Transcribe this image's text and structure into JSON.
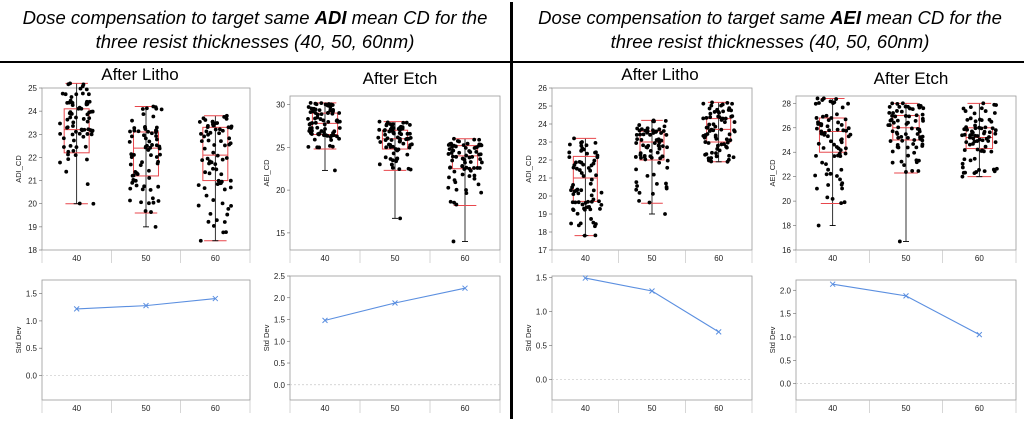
{
  "left_heading": {
    "pre": "Dose compensation to target same ",
    "bold": "ADI",
    "post": " mean CD for the",
    "line2": "three resist thicknesses (40, 50, 60nm)"
  },
  "right_heading": {
    "pre": "Dose compensation to target same ",
    "bold": "AEI",
    "post": " mean CD for the",
    "line2": "three resist thicknesses (40, 50, 60nm)"
  },
  "subtitles": [
    "After Litho",
    "After Etch",
    "After Litho",
    "After Etch"
  ],
  "colors": {
    "box": "#e8474c",
    "points": "#000000",
    "line": "#5b8fe0",
    "grid": "#c8c8c8",
    "zero_line": "#c8c8c8"
  },
  "chart_data": [
    {
      "type": "box",
      "ylabel": "ADI_CD",
      "categories": [
        "40",
        "50",
        "60"
      ],
      "ylim": [
        18,
        25
      ],
      "yticks": [
        18,
        19,
        20,
        21,
        22,
        23,
        24,
        25
      ],
      "boxes": [
        {
          "q1": 22.2,
          "median": 23.2,
          "q3": 24.1,
          "whisker_low": 20.0,
          "whisker_high": 25.2,
          "min": 20.0,
          "max": 25.2
        },
        {
          "q1": 21.2,
          "median": 22.4,
          "q3": 23.1,
          "whisker_low": 19.6,
          "whisker_high": 24.2,
          "min": 19.0,
          "max": 24.2
        },
        {
          "q1": 21.0,
          "median": 22.1,
          "q3": 23.3,
          "whisker_low": 18.4,
          "whisker_high": 23.8,
          "min": 18.4,
          "max": 23.8
        }
      ]
    },
    {
      "type": "box",
      "ylabel": "AEI_CD",
      "categories": [
        "40",
        "50",
        "60"
      ],
      "ylim": [
        13,
        31
      ],
      "yticks": [
        15,
        20,
        25,
        30
      ],
      "boxes": [
        {
          "q1": 26.5,
          "median": 27.8,
          "q3": 29.0,
          "whisker_low": 24.8,
          "whisker_high": 30.2,
          "min": 22.3,
          "max": 30.2
        },
        {
          "q1": 24.8,
          "median": 26.0,
          "q3": 27.0,
          "whisker_low": 22.3,
          "whisker_high": 28.0,
          "min": 16.7,
          "max": 28.0
        },
        {
          "q1": 22.5,
          "median": 24.0,
          "q3": 25.2,
          "whisker_low": 18.2,
          "whisker_high": 26.0,
          "min": 14.0,
          "max": 26.0
        }
      ]
    },
    {
      "type": "box",
      "ylabel": "ADI_CD",
      "categories": [
        "40",
        "50",
        "60"
      ],
      "ylim": [
        17,
        26
      ],
      "yticks": [
        17,
        18,
        19,
        20,
        21,
        22,
        23,
        24,
        25,
        26
      ],
      "boxes": [
        {
          "q1": 19.7,
          "median": 21.0,
          "q3": 22.2,
          "whisker_low": 17.8,
          "whisker_high": 23.2,
          "min": 17.8,
          "max": 23.2
        },
        {
          "q1": 22.0,
          "median": 23.0,
          "q3": 23.6,
          "whisker_low": 19.6,
          "whisker_high": 24.2,
          "min": 19.0,
          "max": 24.2
        },
        {
          "q1": 23.0,
          "median": 23.7,
          "q3": 24.3,
          "whisker_low": 21.9,
          "whisker_high": 25.2,
          "min": 21.9,
          "max": 25.2
        }
      ]
    },
    {
      "type": "box",
      "ylabel": "AEI_CD",
      "categories": [
        "40",
        "50",
        "60"
      ],
      "ylim": [
        16,
        28.6
      ],
      "yticks": [
        16,
        18,
        20,
        22,
        24,
        26,
        28
      ],
      "boxes": [
        {
          "q1": 24.0,
          "median": 25.7,
          "q3": 26.8,
          "whisker_low": 19.8,
          "whisker_high": 28.4,
          "min": 18.0,
          "max": 28.4
        },
        {
          "q1": 25.0,
          "median": 26.0,
          "q3": 27.0,
          "whisker_low": 22.3,
          "whisker_high": 28.0,
          "min": 16.7,
          "max": 28.0
        },
        {
          "q1": 24.3,
          "median": 25.2,
          "q3": 26.0,
          "whisker_low": 22.0,
          "whisker_high": 28.0,
          "min": 22.0,
          "max": 28.0
        }
      ]
    },
    {
      "type": "line",
      "ylabel": "Std Dev",
      "categories": [
        "40",
        "50",
        "60"
      ],
      "values": [
        1.22,
        1.28,
        1.41
      ],
      "ylim": [
        -0.45,
        1.75
      ],
      "yticks": [
        0.0,
        0.5,
        1.0,
        1.5
      ],
      "ytick_labels": [
        "0.0",
        "0.5",
        "1.0",
        "1.5"
      ]
    },
    {
      "type": "line",
      "ylabel": "Std Dev",
      "categories": [
        "40",
        "50",
        "60"
      ],
      "values": [
        1.48,
        1.88,
        2.22
      ],
      "ylim": [
        -0.35,
        2.5
      ],
      "yticks": [
        0.0,
        0.5,
        1.0,
        1.5,
        2.0,
        2.5
      ],
      "ytick_labels": [
        "0.0",
        "0.5",
        "1.0",
        "1.5",
        "2.0",
        "2.5"
      ]
    },
    {
      "type": "line",
      "ylabel": "Std Dev",
      "categories": [
        "40",
        "50",
        "60"
      ],
      "values": [
        1.49,
        1.3,
        0.7
      ],
      "ylim": [
        -0.3,
        1.52
      ],
      "yticks": [
        0.0,
        0.5,
        1.0,
        1.5
      ],
      "ytick_labels": [
        "0.0",
        "0.5",
        "1.0",
        "1.5"
      ]
    },
    {
      "type": "line",
      "ylabel": "Std Dev",
      "categories": [
        "40",
        "50",
        "60"
      ],
      "values": [
        2.13,
        1.88,
        1.05
      ],
      "ylim": [
        -0.35,
        2.22
      ],
      "yticks": [
        0.0,
        0.5,
        1.0,
        1.5,
        2.0
      ],
      "ytick_labels": [
        "0.0",
        "0.5",
        "1.0",
        "1.5",
        "2.0"
      ]
    }
  ]
}
